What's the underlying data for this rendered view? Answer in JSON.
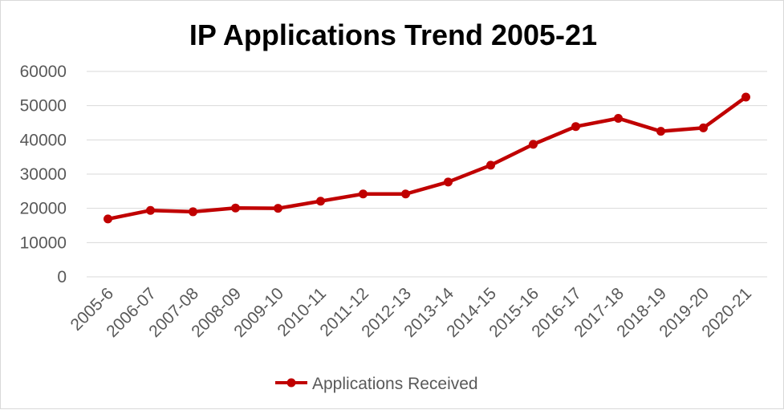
{
  "chart_data": {
    "type": "line",
    "title": "IP Applications Trend 2005-21",
    "xlabel": "",
    "ylabel": "",
    "categories": [
      "2005-6",
      "2006-07",
      "2007-08",
      "2008-09",
      "2009-10",
      "2010-11",
      "2011-12",
      "2012-13",
      "2013-14",
      "2014-15",
      "2015-16",
      "2016-17",
      "2017-18",
      "2018-19",
      "2019-20",
      "2020-21"
    ],
    "series": [
      {
        "name": "Applications Received",
        "color": "#c00000",
        "values": [
          16900,
          19400,
          19000,
          20100,
          20000,
          22100,
          24200,
          24200,
          27700,
          32600,
          38700,
          43900,
          46300,
          42500,
          43500,
          52500
        ]
      }
    ],
    "ylim": [
      0,
      60000
    ],
    "yticks": [
      "0",
      "10000",
      "20000",
      "30000",
      "40000",
      "50000",
      "60000"
    ],
    "grid": "horizontal",
    "legend": "bottom-center"
  }
}
